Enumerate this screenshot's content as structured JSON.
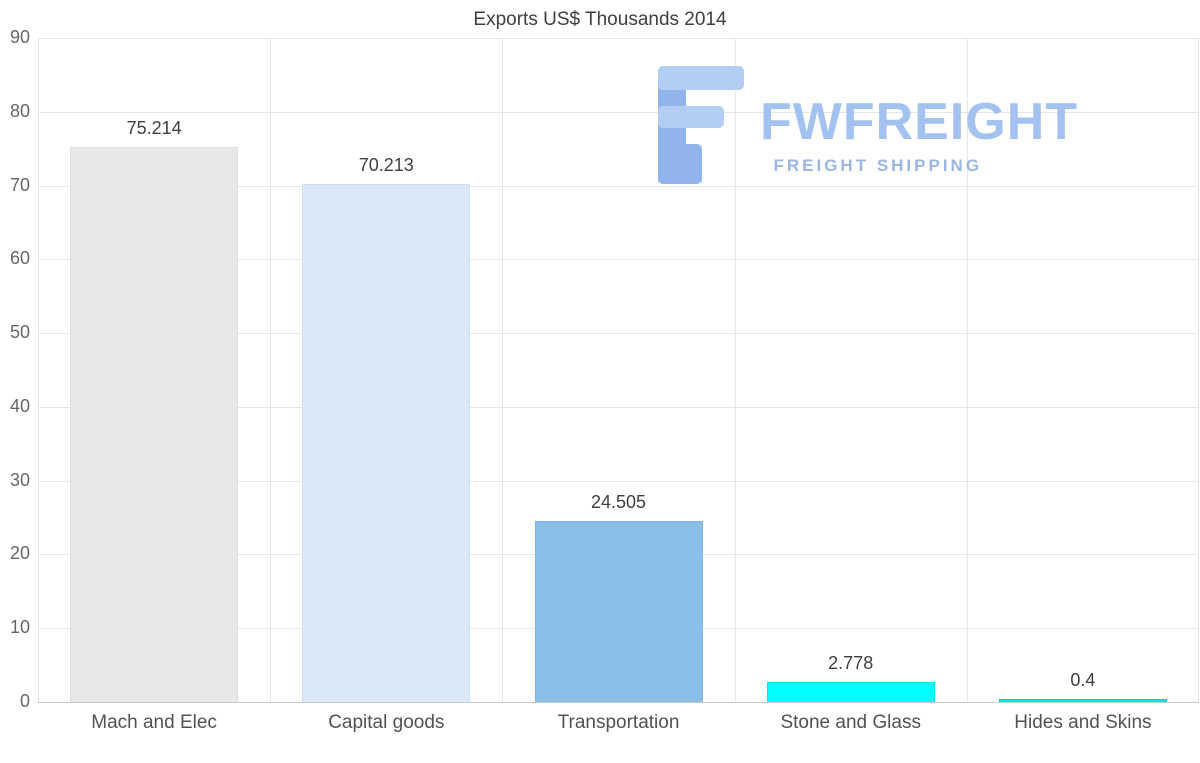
{
  "chart_data": {
    "type": "bar",
    "title": "Exports US$ Thousands 2014",
    "categories": [
      "Mach and Elec",
      "Capital goods",
      "Transportation",
      "Stone and Glass",
      "Hides and Skins"
    ],
    "values": [
      75.214,
      70.213,
      24.505,
      2.778,
      0.4
    ],
    "value_labels": [
      "75.214",
      "70.213",
      "24.505",
      "2.778",
      "0.4"
    ],
    "xlabel": "",
    "ylabel": "",
    "ylim": [
      0,
      90
    ],
    "ytick": 10,
    "grid": true,
    "legend": "none",
    "bar_colors": [
      "#e8e8e8",
      "#d9e9fa",
      "#8cbfe8",
      "#00ffff",
      "#00e4ff"
    ],
    "bar_border_colors": [
      "#dedede",
      "#cde1f5",
      "#7db4e2",
      "#00e2ee",
      "#00cdf0"
    ],
    "gridline_color": "#e6e6e6",
    "axis_line_color": "#c8c8c8",
    "title_color": "#3f3f3f",
    "tick_label_color": "#666666",
    "category_label_color": "#525252"
  },
  "logo": {
    "wordmark": "FWFREIGHT",
    "tagline": "FREIGHT SHIPPING",
    "wordmark_color": "#a3c2ef",
    "tagline_color": "#9cb6e2",
    "glyph_light": "#b4cdf5",
    "glyph_dark": "#92b4ec"
  }
}
